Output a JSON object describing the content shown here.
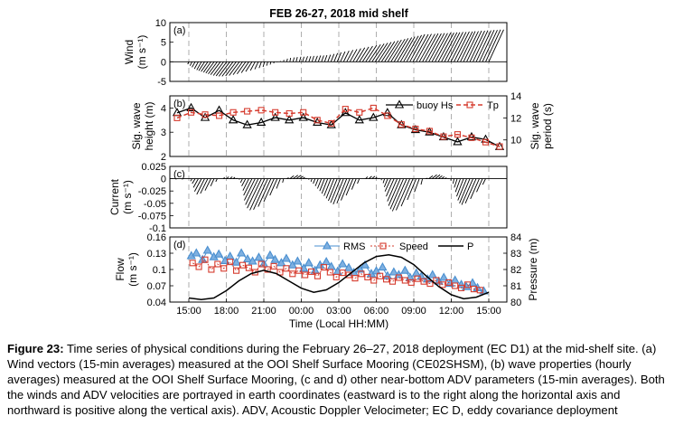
{
  "figure": {
    "title": "FEB 26-27, 2018 mid shelf",
    "xlabel": "Time (Local HH:MM)",
    "xticks": [
      "15:00",
      "18:00",
      "21:00",
      "00:00",
      "03:00",
      "06:00",
      "09:00",
      "12:00",
      "15:00"
    ]
  },
  "chart_data": [
    {
      "type": "vector-stick",
      "panel": "(a)",
      "ylabel": "Wind",
      "yunits": "(m s⁻¹)",
      "ylim": [
        -5,
        10
      ],
      "yticks": [
        -5,
        0,
        5,
        10
      ],
      "u": [
        -0.3,
        -0.5,
        -0.8,
        -1.0,
        -1.2,
        -1.5,
        -1.7,
        -1.9,
        -2.1,
        -2.3,
        -2.5,
        -2.6,
        -2.7,
        -2.8,
        -2.8,
        -2.7,
        -2.6,
        -2.4,
        -2.2,
        -1.9,
        -1.6,
        -1.2,
        -0.9,
        -0.6,
        -0.4,
        -0.3,
        -0.2,
        -0.1,
        0.0,
        0.0,
        0.1,
        0.2,
        0.2,
        0.3,
        0.3,
        0.4,
        0.4,
        0.5,
        0.5,
        0.5,
        0.6,
        0.6,
        0.6,
        0.6,
        0.7,
        0.8,
        0.9,
        1.0,
        1.2,
        1.4,
        1.6,
        1.8,
        2.0,
        2.2,
        2.4,
        2.6,
        2.8,
        3.0,
        3.1,
        3.2,
        3.3,
        3.4,
        3.5,
        3.5,
        3.6,
        3.6,
        3.7,
        3.7,
        3.8,
        3.8,
        3.8,
        3.9,
        3.9,
        4.0,
        4.0,
        4.0,
        4.0,
        4.0,
        4.0,
        4.0,
        4.0,
        3.9,
        3.9,
        3.9,
        3.9,
        3.9,
        3.8,
        3.8,
        3.8,
        3.8,
        3.8,
        3.8,
        3.8,
        3.8,
        3.8,
        3.8
      ],
      "v": [
        -0.6,
        -1.0,
        -1.4,
        -1.8,
        -2.1,
        -2.3,
        -2.5,
        -2.7,
        -2.9,
        -3.1,
        -3.3,
        -3.5,
        -3.6,
        -3.7,
        -3.7,
        -3.6,
        -3.5,
        -3.3,
        -3.1,
        -2.8,
        -2.5,
        -2.2,
        -1.9,
        -1.6,
        -1.3,
        -1.0,
        -0.7,
        -0.4,
        -0.1,
        0.2,
        0.5,
        0.8,
        1.0,
        1.1,
        1.2,
        1.3,
        1.3,
        1.4,
        1.4,
        1.5,
        1.5,
        1.6,
        1.6,
        1.7,
        1.8,
        2.0,
        2.2,
        2.4,
        2.6,
        2.8,
        3.0,
        3.2,
        3.4,
        3.6,
        3.8,
        4.0,
        4.2,
        4.4,
        4.6,
        4.8,
        5.0,
        5.2,
        5.4,
        5.6,
        5.8,
        6.0,
        6.2,
        6.4,
        6.6,
        6.8,
        7.0,
        7.0,
        7.1,
        7.1,
        7.2,
        7.2,
        7.3,
        7.3,
        7.4,
        7.4,
        7.5,
        7.5,
        7.6,
        7.6,
        7.7,
        7.7,
        7.8,
        7.8,
        7.9,
        7.9,
        8.0,
        8.0,
        8.1,
        8.1,
        8.2,
        8.2
      ]
    },
    {
      "type": "line",
      "panel": "(b)",
      "ylabel": "Sig. wave height (m)",
      "ylabel_lines": [
        "Sig. wave",
        "height (m)"
      ],
      "y2label_lines": [
        "Sig. wave",
        "period (s)"
      ],
      "ylim": [
        2,
        4.5
      ],
      "yticks": [
        2,
        3,
        4
      ],
      "y2lim": [
        8.5,
        14
      ],
      "y2ticks": [
        10,
        12,
        14
      ],
      "series": [
        {
          "name": "buoy Hs",
          "axis": "left",
          "color": "#000000",
          "marker": "triangle",
          "x": [
            0,
            1,
            2,
            3,
            4,
            5,
            6,
            7,
            8,
            9,
            10,
            11,
            12,
            13,
            14,
            15,
            16,
            17,
            18,
            19,
            20,
            21,
            22,
            23
          ],
          "values": [
            3.8,
            4.0,
            3.6,
            3.9,
            3.5,
            3.3,
            3.4,
            3.6,
            3.5,
            3.6,
            3.4,
            3.3,
            3.8,
            3.5,
            3.6,
            3.8,
            3.3,
            3.1,
            3.0,
            2.8,
            2.6,
            2.8,
            2.7,
            2.4
          ]
        },
        {
          "name": "Tp",
          "axis": "right",
          "color": "#d63c2f",
          "marker": "square",
          "x": [
            0,
            1,
            2,
            3,
            4,
            5,
            6,
            7,
            8,
            9,
            10,
            11,
            12,
            13,
            14,
            15,
            16,
            17,
            18,
            19,
            20,
            21,
            22,
            23
          ],
          "values": [
            12.0,
            12.5,
            12.3,
            12.2,
            12.5,
            12.6,
            12.7,
            12.5,
            12.4,
            12.5,
            11.8,
            11.5,
            12.8,
            12.5,
            12.9,
            12.2,
            11.4,
            11.0,
            10.8,
            10.3,
            10.5,
            10.2,
            9.8,
            9.4
          ]
        }
      ]
    },
    {
      "type": "vector-stick",
      "panel": "(c)",
      "ylabel": "Current",
      "yunits": "(m s⁻¹)",
      "ylim": [
        -0.1,
        0.025
      ],
      "yticks": [
        0.025,
        0,
        -0.025,
        -0.05,
        -0.075,
        -0.1
      ],
      "ytick_labels": [
        "0.025",
        "0",
        "-0.025",
        "-0.05",
        "-0.075",
        "-0.1"
      ],
      "u": [
        0.0,
        -0.003,
        -0.006,
        -0.01,
        -0.014,
        -0.016,
        -0.015,
        -0.012,
        -0.007,
        -0.003,
        0.0,
        0.002,
        0.004,
        0.005,
        0.004,
        0.002,
        0.0,
        -0.004,
        -0.008,
        -0.012,
        -0.017,
        -0.022,
        -0.026,
        -0.029,
        -0.03,
        -0.029,
        -0.026,
        -0.021,
        -0.015,
        -0.008,
        -0.002,
        0.004,
        0.008,
        0.01,
        0.01,
        0.008,
        0.005,
        0.002,
        0.0,
        -0.002,
        -0.004,
        -0.006,
        -0.008,
        -0.01,
        -0.012,
        -0.014,
        -0.016,
        -0.018,
        -0.02,
        -0.021,
        -0.02,
        -0.018,
        -0.014,
        -0.009,
        -0.004,
        0.0,
        0.004,
        0.006,
        0.006,
        0.004,
        0.002,
        0.0,
        -0.003,
        -0.007,
        -0.012,
        -0.016,
        -0.02,
        -0.024,
        -0.027,
        -0.029,
        -0.028,
        -0.024,
        -0.018,
        -0.01,
        -0.003,
        0.004,
        0.008,
        0.01,
        0.01,
        0.008,
        0.006,
        0.004,
        0.002,
        0.0,
        -0.002,
        -0.006,
        -0.01,
        -0.014,
        -0.018,
        -0.021,
        -0.023,
        -0.022,
        -0.018,
        -0.012,
        -0.006,
        0.0
      ],
      "v": [
        0.0,
        -0.005,
        -0.01,
        -0.018,
        -0.026,
        -0.032,
        -0.03,
        -0.024,
        -0.015,
        -0.006,
        0.0,
        0.003,
        0.004,
        0.004,
        0.003,
        0.001,
        -0.002,
        -0.008,
        -0.015,
        -0.024,
        -0.034,
        -0.044,
        -0.053,
        -0.06,
        -0.064,
        -0.063,
        -0.057,
        -0.047,
        -0.034,
        -0.02,
        -0.008,
        0.002,
        0.006,
        0.007,
        0.007,
        0.005,
        0.003,
        0.001,
        -0.002,
        -0.006,
        -0.01,
        -0.015,
        -0.02,
        -0.025,
        -0.03,
        -0.035,
        -0.04,
        -0.045,
        -0.049,
        -0.052,
        -0.05,
        -0.044,
        -0.034,
        -0.022,
        -0.01,
        0.0,
        0.004,
        0.005,
        0.005,
        0.003,
        0.001,
        -0.003,
        -0.009,
        -0.017,
        -0.026,
        -0.036,
        -0.046,
        -0.055,
        -0.062,
        -0.066,
        -0.064,
        -0.056,
        -0.043,
        -0.027,
        -0.012,
        0.001,
        0.006,
        0.008,
        0.008,
        0.006,
        0.004,
        0.002,
        0.0,
        -0.004,
        -0.01,
        -0.018,
        -0.027,
        -0.036,
        -0.044,
        -0.05,
        -0.053,
        -0.05,
        -0.041,
        -0.027,
        -0.012,
        0.0
      ]
    },
    {
      "type": "line",
      "panel": "(d)",
      "ylabel": "Flow",
      "yunits": "(m s⁻¹)",
      "ylim": [
        0.04,
        0.16
      ],
      "yticks": [
        0.04,
        0.07,
        0.1,
        0.13,
        0.16
      ],
      "ytick_labels": [
        "0.04",
        "0.07",
        "0.1",
        "0.13",
        "0.16"
      ],
      "y2label": "Pressure (m)",
      "y2lim": [
        80,
        84
      ],
      "y2ticks": [
        80,
        81,
        82,
        83,
        84
      ],
      "series": [
        {
          "name": "RMS",
          "axis": "left",
          "color": "#4a8fd0",
          "marker": "triangle",
          "x_hours": [
            0.2,
            0.6,
            1.1,
            1.5,
            2.0,
            2.4,
            2.9,
            3.3,
            3.8,
            4.2,
            4.7,
            5.1,
            5.6,
            6.0,
            6.5,
            6.9,
            7.4,
            7.8,
            8.3,
            8.7,
            9.2,
            9.6,
            10.1,
            10.5,
            11.0,
            11.4,
            11.9,
            12.3,
            12.8,
            13.2,
            13.7,
            14.1,
            14.6,
            15.0,
            15.5,
            15.9,
            16.4,
            16.8,
            17.3,
            17.7,
            18.2,
            18.6,
            19.1,
            19.5,
            20.0,
            20.4,
            20.9,
            21.3,
            21.8,
            22.2,
            22.7,
            23.1,
            23.6
          ],
          "values": [
            0.125,
            0.13,
            0.118,
            0.135,
            0.123,
            0.128,
            0.116,
            0.124,
            0.113,
            0.13,
            0.119,
            0.115,
            0.122,
            0.11,
            0.126,
            0.118,
            0.112,
            0.12,
            0.108,
            0.115,
            0.102,
            0.112,
            0.098,
            0.108,
            0.114,
            0.105,
            0.096,
            0.11,
            0.103,
            0.094,
            0.1,
            0.108,
            0.092,
            0.097,
            0.104,
            0.088,
            0.095,
            0.09,
            0.098,
            0.085,
            0.093,
            0.087,
            0.082,
            0.09,
            0.078,
            0.085,
            0.074,
            0.08,
            0.072,
            0.068,
            0.075,
            0.066,
            0.06
          ]
        },
        {
          "name": "Speed",
          "axis": "left",
          "color": "#d63c2f",
          "marker": "square",
          "x_hours": [
            0.3,
            0.8,
            1.3,
            1.8,
            2.3,
            2.8,
            3.3,
            3.8,
            4.3,
            4.8,
            5.3,
            5.8,
            6.3,
            6.8,
            7.3,
            7.8,
            8.3,
            8.8,
            9.3,
            9.8,
            10.3,
            10.8,
            11.3,
            11.8,
            12.3,
            12.8,
            13.3,
            13.8,
            14.3,
            14.8,
            15.3,
            15.8,
            16.3,
            16.8,
            17.3,
            17.8,
            18.3,
            18.8,
            19.3,
            19.8,
            20.3,
            20.8,
            21.3,
            21.8,
            22.3,
            22.8,
            23.3
          ],
          "values": [
            0.112,
            0.105,
            0.118,
            0.1,
            0.11,
            0.102,
            0.114,
            0.098,
            0.108,
            0.103,
            0.095,
            0.11,
            0.1,
            0.106,
            0.095,
            0.102,
            0.092,
            0.098,
            0.09,
            0.096,
            0.088,
            0.104,
            0.095,
            0.086,
            0.094,
            0.09,
            0.084,
            0.092,
            0.086,
            0.08,
            0.088,
            0.082,
            0.078,
            0.085,
            0.08,
            0.076,
            0.083,
            0.078,
            0.074,
            0.08,
            0.072,
            0.076,
            0.07,
            0.066,
            0.072,
            0.064,
            0.062
          ]
        },
        {
          "name": "P",
          "axis": "right",
          "color": "#000000",
          "marker": "none",
          "x_hours": [
            0,
            1,
            2,
            3,
            4,
            5,
            6,
            7,
            8,
            9,
            10,
            11,
            12,
            13,
            14,
            15,
            16,
            17,
            18,
            19,
            20,
            21,
            22,
            23,
            24
          ],
          "values": [
            80.25,
            80.15,
            80.25,
            80.7,
            81.3,
            81.75,
            81.95,
            81.75,
            81.3,
            80.85,
            80.6,
            80.75,
            81.2,
            81.8,
            82.4,
            82.8,
            82.9,
            82.75,
            82.3,
            81.6,
            80.95,
            80.45,
            80.2,
            80.3,
            80.6
          ]
        }
      ]
    }
  ],
  "caption": {
    "label": "Figure 23:",
    "text": " Time series of physical conditions during the February 26–27, 2018 deployment (EC D1) at the mid-shelf site. (a) Wind vectors (15-min averages) measured at the OOI Shelf Surface Mooring (CE02SHSM), (b) wave properties (hourly averages) measured at the OOI Shelf Surface Mooring, (c and d) other near-bottom ADV parameters (15-min averages).  Both the winds and ADV velocities are portrayed in earth coordinates (eastward is to the right along the horizontal axis and northward is positive along the vertical axis). ADV, Acoustic Doppler Velocimeter; EC D, eddy covariance deployment"
  }
}
